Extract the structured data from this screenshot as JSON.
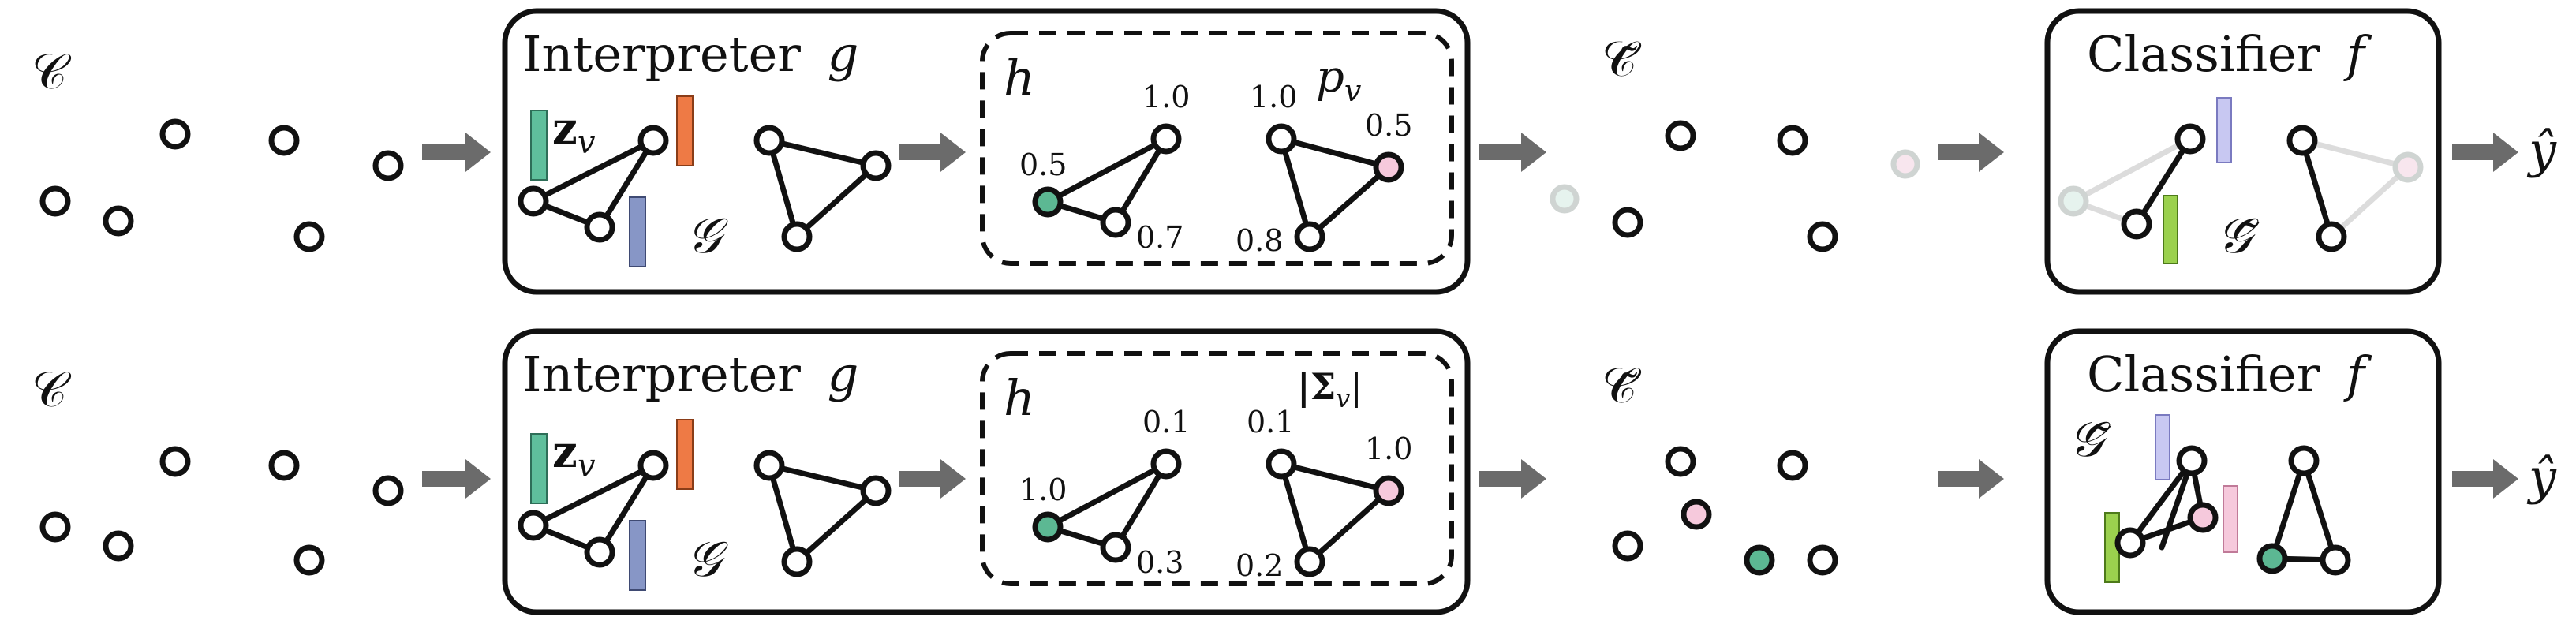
{
  "colors": {
    "teal": "#5fbf9c",
    "orange": "#ee7a45",
    "slate": "#8796c6",
    "lavender": "#c8c8f2",
    "green": "#9bd14e",
    "pink": "#f6c9dc",
    "mint": "#5cb893",
    "arrow": "#6b6b6b"
  },
  "rows": [
    {
      "input_label": "𝒞",
      "interpreter_title": "Interpreter",
      "interpreter_var": "g",
      "embedding_label": "z",
      "embedding_sub": "v",
      "graph_label": "𝒢",
      "inner_label": "h",
      "inner_score_label": "p",
      "inner_score_sub": "v",
      "inner_values": [
        "1.0",
        "0.5",
        "0.7",
        "1.0",
        "0.5",
        "0.8"
      ],
      "output_label": "𝒞̃",
      "classifier_title": "Classifier",
      "classifier_var": "f",
      "classifier_graph_label": "𝒢̃",
      "prediction_label": "ŷ"
    },
    {
      "input_label": "𝒞",
      "interpreter_title": "Interpreter",
      "interpreter_var": "g",
      "embedding_label": "z",
      "embedding_sub": "v",
      "graph_label": "𝒢",
      "inner_label": "h",
      "inner_score_label": "|Σ",
      "inner_score_sub": "v",
      "inner_score_close": "|",
      "inner_values": [
        "0.1",
        "1.0",
        "0.3",
        "0.1",
        "1.0",
        "0.2"
      ],
      "output_label": "𝒞̃",
      "classifier_title": "Classifier",
      "classifier_var": "f",
      "classifier_graph_label": "𝒢̃",
      "prediction_label": "ŷ"
    }
  ]
}
